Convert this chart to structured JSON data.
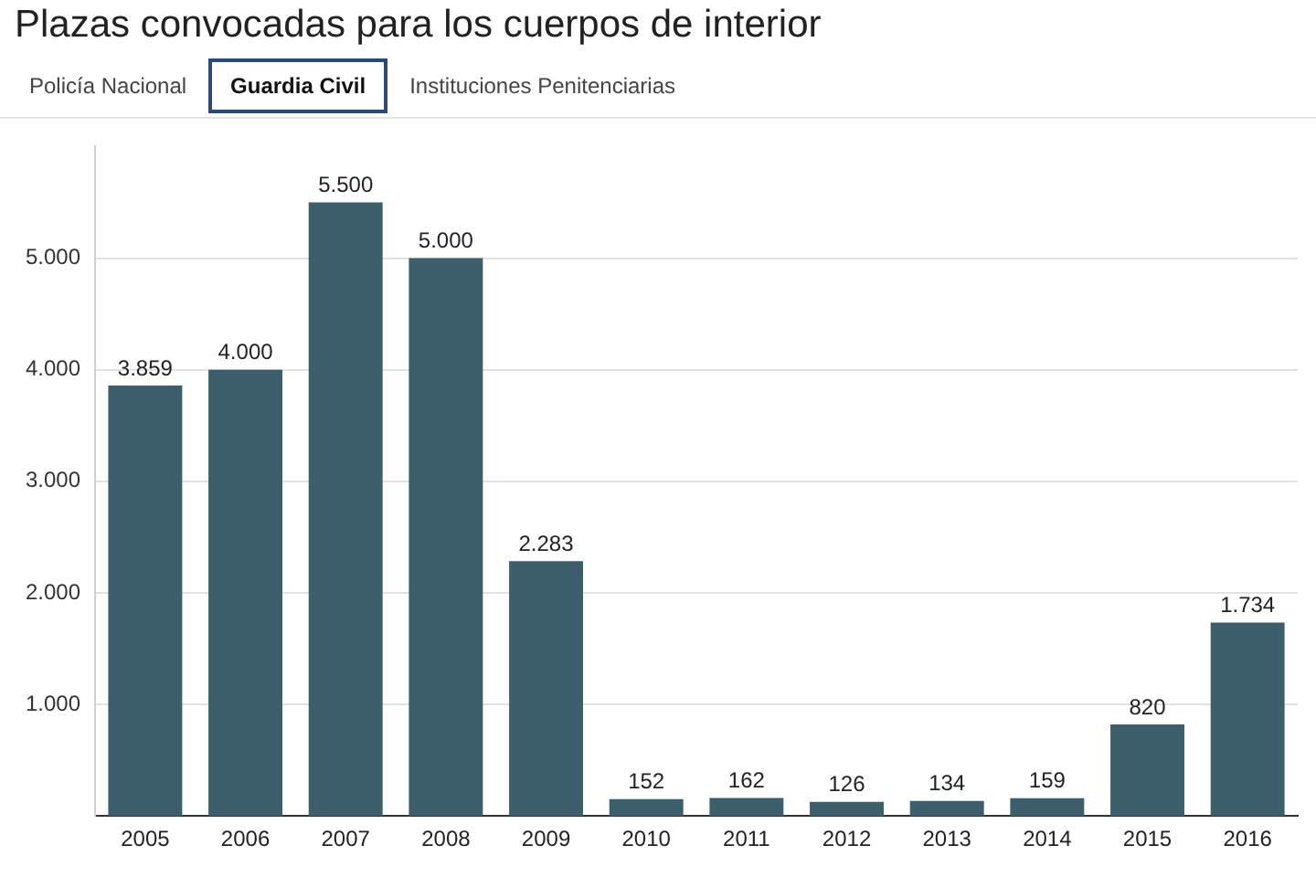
{
  "chart_data": {
    "type": "bar",
    "title": "Plazas convocadas para los cuerpos de interior",
    "annotations": [
      "Policía Nacional",
      "Guardia Civil",
      "Instituciones Penitenciarias"
    ],
    "categories": [
      "2005",
      "2006",
      "2007",
      "2008",
      "2009",
      "2010",
      "2011",
      "2012",
      "2013",
      "2014",
      "2015",
      "2016"
    ],
    "values": [
      3859,
      4000,
      5500,
      5000,
      2283,
      152,
      162,
      126,
      134,
      159,
      820,
      1734
    ],
    "value_labels": [
      "3.859",
      "4.000",
      "5.500",
      "5.000",
      "2.283",
      "152",
      "162",
      "126",
      "134",
      "159",
      "820",
      "1.734"
    ],
    "color": "#3d5f6d",
    "ylim": [
      0,
      6000
    ],
    "yticks": [
      {
        "value": 1000,
        "label": "1.000"
      },
      {
        "value": 2000,
        "label": "2.000"
      },
      {
        "value": 3000,
        "label": "3.000"
      },
      {
        "value": 4000,
        "label": "4.000"
      },
      {
        "value": 5000,
        "label": "5.000"
      }
    ],
    "grid": "y",
    "legend": false
  }
}
